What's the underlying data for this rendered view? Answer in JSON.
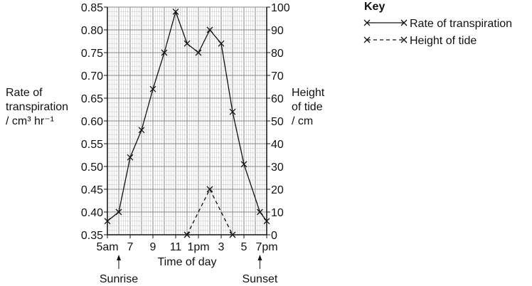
{
  "chart_data": {
    "type": "line",
    "xlabel": "Time of day",
    "x_tick_labels": [
      "5am",
      "7",
      "9",
      "11",
      "1pm",
      "3",
      "5",
      "7pm"
    ],
    "x_ticks_hours": [
      5,
      7,
      9,
      11,
      13,
      15,
      17,
      19
    ],
    "xlim": [
      5,
      19
    ],
    "ylabel_left": [
      "Rate of",
      "transpiration",
      "/ cm³ hr⁻¹"
    ],
    "ylim_left": [
      0.35,
      0.85
    ],
    "y_ticks_left": [
      "0.85",
      "0.80",
      "0.75",
      "0.70",
      "0.65",
      "0.60",
      "0.55",
      "0.50",
      "0.45",
      "0.40",
      "0.35"
    ],
    "ylabel_right": [
      "Height",
      "of tide",
      "/ cm"
    ],
    "ylim_right": [
      0,
      100
    ],
    "y_ticks_right": [
      "100",
      "90",
      "80",
      "70",
      "60",
      "50",
      "40",
      "30",
      "20",
      "10",
      "0"
    ],
    "grid": true,
    "legend": {
      "title": "Key",
      "position": "top-right"
    },
    "series": [
      {
        "name": "Rate of transpiration",
        "axis": "left",
        "style": "solid",
        "x": [
          5,
          6,
          7,
          8,
          9,
          10,
          11,
          12,
          13,
          14,
          15,
          16,
          17,
          18.4,
          19
        ],
        "y": [
          0.38,
          0.4,
          0.52,
          0.58,
          0.67,
          0.75,
          0.84,
          0.77,
          0.75,
          0.8,
          0.77,
          0.62,
          0.505,
          0.4,
          0.38
        ]
      },
      {
        "name": "Height of tide",
        "axis": "right",
        "style": "dashed",
        "x": [
          12,
          14,
          16
        ],
        "y": [
          0,
          20,
          0
        ]
      }
    ],
    "annotations": [
      {
        "text": "Sunrise",
        "x": 6
      },
      {
        "text": "Sunset",
        "x": 18.4
      }
    ]
  }
}
